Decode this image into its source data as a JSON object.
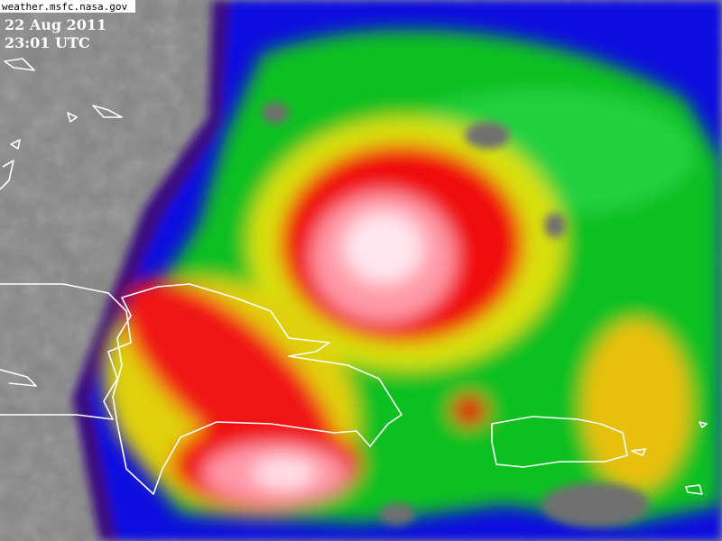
{
  "source": "weather.msfc.nasa.gov",
  "date": "22 Aug 2011",
  "time": "23:01 UTC"
}
